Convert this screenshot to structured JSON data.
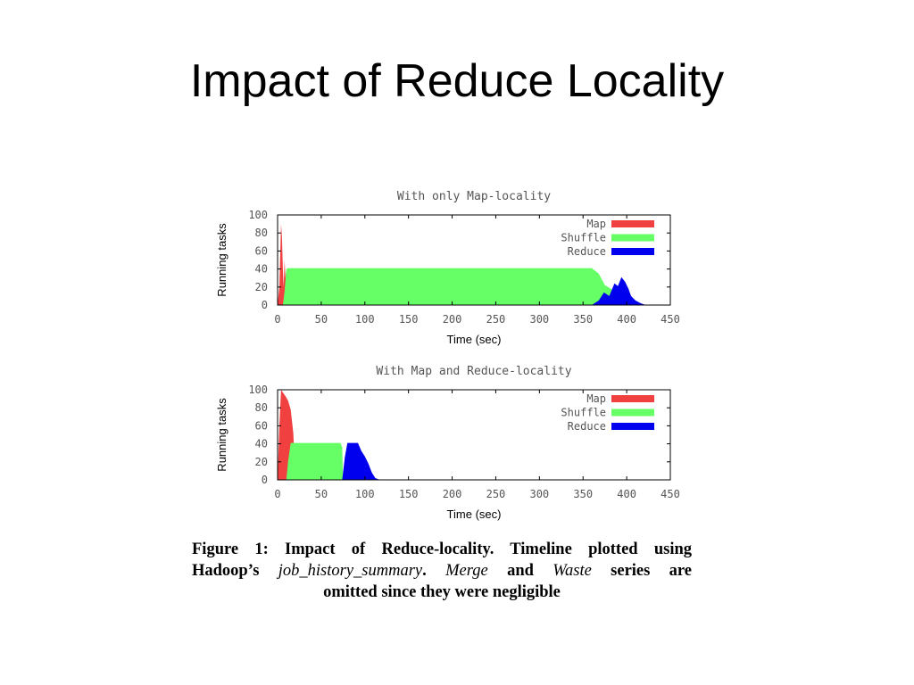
{
  "slide": {
    "title": "Impact of Reduce Locality"
  },
  "colors": {
    "map": "#f04040",
    "shuffle": "#66ff66",
    "reduce": "#0000ee",
    "axis": "#000000",
    "text": "#555555"
  },
  "chart_data": [
    {
      "type": "area",
      "title": "With only Map-locality",
      "xlabel": "Time (sec)",
      "ylabel": "Running tasks",
      "xlim": [
        0,
        450
      ],
      "ylim": [
        0,
        100
      ],
      "xticks": [
        "0",
        "50",
        "100",
        "150",
        "200",
        "250",
        "300",
        "350",
        "400",
        "450"
      ],
      "yticks": [
        "0",
        "20",
        "40",
        "60",
        "80",
        "100"
      ],
      "legend": "top-right",
      "series": [
        {
          "name": "Map",
          "points": [
            [
              0,
              0
            ],
            [
              2,
              20
            ],
            [
              4,
              90
            ],
            [
              5,
              75
            ],
            [
              6,
              40
            ],
            [
              7,
              20
            ],
            [
              8,
              50
            ],
            [
              9,
              30
            ],
            [
              10,
              40
            ],
            [
              11,
              0
            ]
          ]
        },
        {
          "name": "Shuffle",
          "points": [
            [
              6,
              0
            ],
            [
              8,
              15
            ],
            [
              10,
              40
            ],
            [
              12,
              41
            ],
            [
              20,
              41
            ],
            [
              360,
              41
            ],
            [
              368,
              35
            ],
            [
              375,
              22
            ],
            [
              382,
              18
            ],
            [
              388,
              12
            ],
            [
              392,
              10
            ],
            [
              395,
              0
            ]
          ]
        },
        {
          "name": "Reduce",
          "points": [
            [
              360,
              0
            ],
            [
              368,
              5
            ],
            [
              374,
              14
            ],
            [
              380,
              10
            ],
            [
              386,
              24
            ],
            [
              390,
              21
            ],
            [
              394,
              31
            ],
            [
              398,
              26
            ],
            [
              402,
              18
            ],
            [
              405,
              10
            ],
            [
              410,
              5
            ],
            [
              416,
              2
            ],
            [
              422,
              0
            ]
          ]
        }
      ]
    },
    {
      "type": "area",
      "title": "With Map and Reduce-locality",
      "xlabel": "Time (sec)",
      "ylabel": "Running tasks",
      "xlim": [
        0,
        450
      ],
      "ylim": [
        0,
        100
      ],
      "xticks": [
        "0",
        "50",
        "100",
        "150",
        "200",
        "250",
        "300",
        "350",
        "400",
        "450"
      ],
      "yticks": [
        "0",
        "20",
        "40",
        "60",
        "80",
        "100"
      ],
      "legend": "top-right",
      "series": [
        {
          "name": "Map",
          "points": [
            [
              0,
              0
            ],
            [
              2,
              60
            ],
            [
              4,
              100
            ],
            [
              6,
              97
            ],
            [
              9,
              93
            ],
            [
              12,
              88
            ],
            [
              15,
              78
            ],
            [
              18,
              52
            ],
            [
              19,
              30
            ],
            [
              20,
              0
            ]
          ]
        },
        {
          "name": "Shuffle",
          "points": [
            [
              10,
              0
            ],
            [
              12,
              20
            ],
            [
              15,
              41
            ],
            [
              72,
              41
            ],
            [
              74,
              36
            ],
            [
              75,
              0
            ]
          ]
        },
        {
          "name": "Reduce",
          "points": [
            [
              74,
              0
            ],
            [
              77,
              25
            ],
            [
              80,
              41
            ],
            [
              92,
              41
            ],
            [
              96,
              32
            ],
            [
              100,
              26
            ],
            [
              104,
              18
            ],
            [
              108,
              8
            ],
            [
              112,
              2
            ],
            [
              117,
              0
            ]
          ]
        }
      ]
    }
  ],
  "caption": {
    "line1": "Figure 1: Impact of Reduce-locality. Timeline plotted using",
    "line2_a": "Hadoop’s",
    "line2_b": "job_history_summary",
    "line2_c": ". ",
    "line2_d": "Merge",
    "line2_e": "and",
    "line2_f": "Waste",
    "line2_g": "series are",
    "line3": "omitted since they were negligible"
  }
}
